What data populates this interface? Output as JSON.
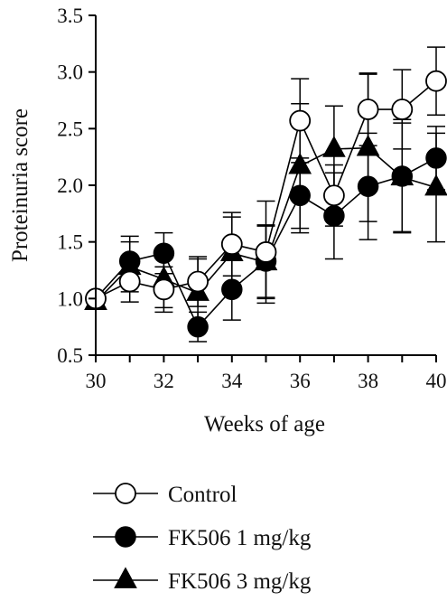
{
  "chart_data": {
    "type": "line",
    "title": "",
    "xlabel": "Weeks of age",
    "ylabel": "Proteinuria score",
    "xlim": [
      30,
      40
    ],
    "ylim": [
      0.5,
      3.5
    ],
    "x_ticks": [
      "30",
      "32",
      "34",
      "36",
      "38",
      "40"
    ],
    "y_ticks": [
      "0.5",
      "1.0",
      "1.5",
      "2.0",
      "2.5",
      "3.0",
      "3.5"
    ],
    "x": [
      30,
      31,
      32,
      33,
      34,
      35,
      36,
      37,
      38,
      39,
      40
    ],
    "legend_position": "bottom",
    "grid": false,
    "series": [
      {
        "name": "FK506 3 mg/kg",
        "marker": "triangle",
        "color": "#000000",
        "values": [
          0.97,
          1.28,
          1.17,
          1.05,
          1.4,
          1.32,
          2.17,
          2.32,
          2.33,
          2.07,
          1.98
        ],
        "errors": [
          0.03,
          0.22,
          0.25,
          0.3,
          0.32,
          0.32,
          0.55,
          0.38,
          0.65,
          0.48,
          0.48
        ]
      },
      {
        "name": "FK506 1 mg/kg",
        "marker": "filled-circle",
        "color": "#000000",
        "values": [
          1.0,
          1.33,
          1.4,
          0.75,
          1.08,
          1.33,
          1.91,
          1.73,
          1.99,
          2.08,
          2.24
        ],
        "errors": [
          0.03,
          0.22,
          0.18,
          0.13,
          0.27,
          0.32,
          0.33,
          0.38,
          0.47,
          0.5,
          0.28
        ]
      },
      {
        "name": "Control",
        "marker": "open-circle",
        "color": "#000000",
        "values": [
          1.0,
          1.15,
          1.08,
          1.15,
          1.48,
          1.41,
          2.57,
          1.91,
          2.67,
          2.67,
          2.92
        ],
        "errors": [
          0.03,
          0.18,
          0.2,
          0.22,
          0.28,
          0.45,
          0.37,
          0.27,
          0.32,
          0.35,
          0.3
        ]
      }
    ]
  }
}
